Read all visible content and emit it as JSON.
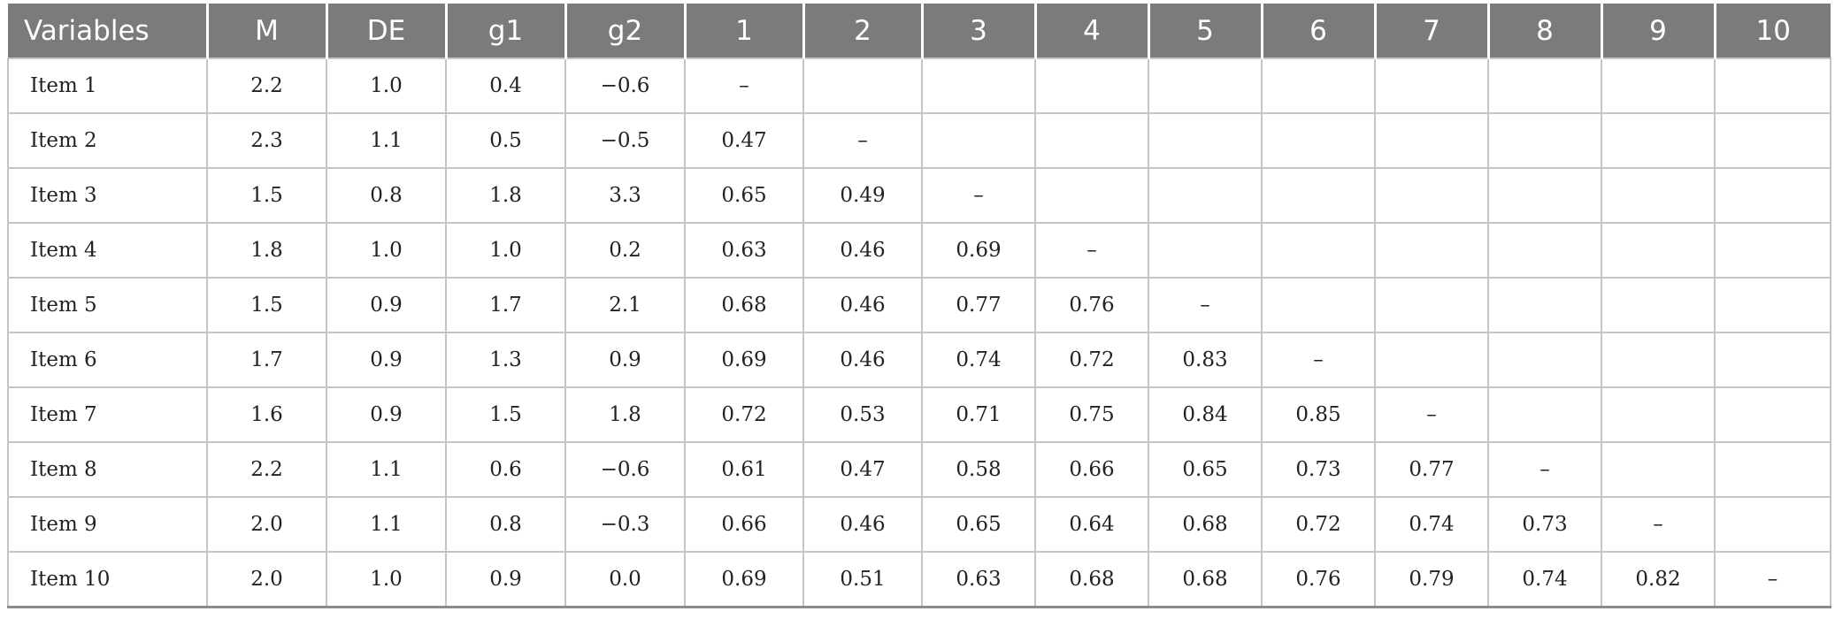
{
  "table": {
    "headers": [
      "Variables",
      "M",
      "DE",
      "g1",
      "g2",
      "1",
      "2",
      "3",
      "4",
      "5",
      "6",
      "7",
      "8",
      "9",
      "10"
    ],
    "rows": [
      [
        "Item 1",
        "2.2",
        "1.0",
        "0.4",
        "−0.6",
        "–",
        "",
        "",
        "",
        "",
        "",
        "",
        "",
        "",
        ""
      ],
      [
        "Item 2",
        "2.3",
        "1.1",
        "0.5",
        "−0.5",
        "0.47",
        "–",
        "",
        "",
        "",
        "",
        "",
        "",
        "",
        ""
      ],
      [
        "Item 3",
        "1.5",
        "0.8",
        "1.8",
        "3.3",
        "0.65",
        "0.49",
        "–",
        "",
        "",
        "",
        "",
        "",
        "",
        ""
      ],
      [
        "Item 4",
        "1.8",
        "1.0",
        "1.0",
        "0.2",
        "0.63",
        "0.46",
        "0.69",
        "–",
        "",
        "",
        "",
        "",
        "",
        ""
      ],
      [
        "Item 5",
        "1.5",
        "0.9",
        "1.7",
        "2.1",
        "0.68",
        "0.46",
        "0.77",
        "0.76",
        "–",
        "",
        "",
        "",
        "",
        ""
      ],
      [
        "Item 6",
        "1.7",
        "0.9",
        "1.3",
        "0.9",
        "0.69",
        "0.46",
        "0.74",
        "0.72",
        "0.83",
        "–",
        "",
        "",
        "",
        ""
      ],
      [
        "Item 7",
        "1.6",
        "0.9",
        "1.5",
        "1.8",
        "0.72",
        "0.53",
        "0.71",
        "0.75",
        "0.84",
        "0.85",
        "–",
        "",
        "",
        ""
      ],
      [
        "Item 8",
        "2.2",
        "1.1",
        "0.6",
        "−0.6",
        "0.61",
        "0.47",
        "0.58",
        "0.66",
        "0.65",
        "0.73",
        "0.77",
        "–",
        "",
        ""
      ],
      [
        "Item 9",
        "2.0",
        "1.1",
        "0.8",
        "−0.3",
        "0.66",
        "0.46",
        "0.65",
        "0.64",
        "0.68",
        "0.72",
        "0.74",
        "0.73",
        "–",
        ""
      ],
      [
        "Item 10",
        "2.0",
        "1.0",
        "0.9",
        "0.0",
        "0.69",
        "0.51",
        "0.63",
        "0.68",
        "0.68",
        "0.76",
        "0.79",
        "0.74",
        "0.82",
        "–"
      ]
    ]
  },
  "colors": {
    "header_bg": "#7b7b7b",
    "header_text": "#ffffff",
    "grid_line": "#c4c4c4",
    "body_text": "#222222"
  }
}
